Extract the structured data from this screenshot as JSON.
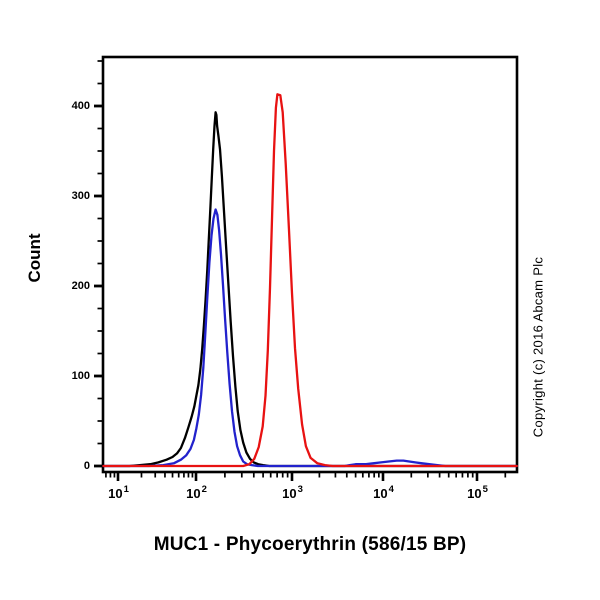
{
  "window": {
    "background": "#ffffff"
  },
  "copyright": "Copyright (c) 2016 Abcam Plc",
  "chart_data": {
    "type": "line",
    "chart_kind": "flow-cytometry-histogram-overlay",
    "title": "",
    "xlabel": "MUC1 - Phycoerythrin (586/15 BP)",
    "ylabel": "Count",
    "x_scale": "log",
    "xlim": [
      6.5,
      265000
    ],
    "ylim": [
      0,
      454
    ],
    "grid": false,
    "legend": "none",
    "frame_color": "#000000",
    "x_ticks": [
      {
        "base": "10",
        "exp": "1",
        "value": 10
      },
      {
        "base": "10",
        "exp": "2",
        "value": 100
      },
      {
        "base": "10",
        "exp": "3",
        "value": 1000
      },
      {
        "base": "10",
        "exp": "4",
        "value": 10000
      },
      {
        "base": "10",
        "exp": "5",
        "value": 100000
      }
    ],
    "y_ticks": [
      {
        "label": "0",
        "value": 0
      },
      {
        "label": "100",
        "value": 100
      },
      {
        "label": "200",
        "value": 200
      },
      {
        "label": "300",
        "value": 300
      },
      {
        "label": "400",
        "value": 400
      }
    ],
    "y_minor_tick_step": 25,
    "series": [
      {
        "name": "black",
        "color": "#000000",
        "peak": {
          "x": 160,
          "count": 393
        },
        "points": [
          [
            6.5,
            0
          ],
          [
            14,
            0
          ],
          [
            19,
            1
          ],
          [
            26,
            2
          ],
          [
            33,
            4
          ],
          [
            42,
            7
          ],
          [
            50,
            10
          ],
          [
            57,
            14
          ],
          [
            64,
            20
          ],
          [
            72,
            31
          ],
          [
            80,
            43
          ],
          [
            88,
            55
          ],
          [
            95,
            66
          ],
          [
            100,
            76
          ],
          [
            106,
            90
          ],
          [
            111,
            108
          ],
          [
            116,
            130
          ],
          [
            121,
            156
          ],
          [
            126,
            185
          ],
          [
            131,
            218
          ],
          [
            136,
            252
          ],
          [
            141,
            285
          ],
          [
            146,
            320
          ],
          [
            151,
            352
          ],
          [
            156,
            378
          ],
          [
            160,
            393
          ],
          [
            163,
            390
          ],
          [
            166,
            378
          ],
          [
            171,
            367
          ],
          [
            178,
            352
          ],
          [
            186,
            322
          ],
          [
            196,
            281
          ],
          [
            207,
            240
          ],
          [
            218,
            200
          ],
          [
            230,
            160
          ],
          [
            243,
            122
          ],
          [
            257,
            88
          ],
          [
            272,
            61
          ],
          [
            290,
            40
          ],
          [
            310,
            26
          ],
          [
            335,
            15
          ],
          [
            365,
            8
          ],
          [
            400,
            4
          ],
          [
            445,
            2
          ],
          [
            500,
            1
          ],
          [
            580,
            0
          ],
          [
            1000,
            0
          ],
          [
            5000,
            0
          ],
          [
            50000,
            0
          ],
          [
            265000,
            0
          ]
        ]
      },
      {
        "name": "blue",
        "color": "#2222cc",
        "peak": {
          "x": 160,
          "count": 285
        },
        "points": [
          [
            6.5,
            0
          ],
          [
            25,
            0
          ],
          [
            38,
            1
          ],
          [
            52,
            3
          ],
          [
            64,
            7
          ],
          [
            75,
            12
          ],
          [
            85,
            19
          ],
          [
            94,
            29
          ],
          [
            101,
            42
          ],
          [
            107,
            57
          ],
          [
            113,
            79
          ],
          [
            119,
            109
          ],
          [
            125,
            147
          ],
          [
            131,
            187
          ],
          [
            138,
            226
          ],
          [
            145,
            256
          ],
          [
            152,
            275
          ],
          [
            160,
            285
          ],
          [
            167,
            279
          ],
          [
            174,
            262
          ],
          [
            182,
            235
          ],
          [
            191,
            201
          ],
          [
            201,
            163
          ],
          [
            212,
            126
          ],
          [
            224,
            91
          ],
          [
            237,
            61
          ],
          [
            252,
            38
          ],
          [
            268,
            22
          ],
          [
            287,
            12
          ],
          [
            310,
            5
          ],
          [
            340,
            2
          ],
          [
            380,
            1
          ],
          [
            440,
            0
          ],
          [
            1500,
            0
          ],
          [
            3800,
            0
          ],
          [
            4300,
            1
          ],
          [
            5000,
            2
          ],
          [
            5700,
            2
          ],
          [
            6500,
            2
          ],
          [
            7800,
            3
          ],
          [
            9500,
            4
          ],
          [
            11500,
            5
          ],
          [
            14000,
            6
          ],
          [
            16500,
            6
          ],
          [
            19000,
            5
          ],
          [
            22000,
            4
          ],
          [
            26000,
            3
          ],
          [
            31000,
            2
          ],
          [
            38000,
            1
          ],
          [
            46000,
            0
          ],
          [
            265000,
            0
          ]
        ]
      },
      {
        "name": "red",
        "color": "#e81212",
        "peak": {
          "x": 710,
          "count": 414
        },
        "points": [
          [
            6.5,
            0
          ],
          [
            50,
            0
          ],
          [
            150,
            0
          ],
          [
            250,
            0
          ],
          [
            310,
            0
          ],
          [
            360,
            2
          ],
          [
            405,
            8
          ],
          [
            450,
            21
          ],
          [
            495,
            44
          ],
          [
            530,
            78
          ],
          [
            560,
            128
          ],
          [
            590,
            198
          ],
          [
            620,
            278
          ],
          [
            650,
            350
          ],
          [
            680,
            398
          ],
          [
            705,
            413
          ],
          [
            755,
            412
          ],
          [
            800,
            393
          ],
          [
            860,
            336
          ],
          [
            930,
            262
          ],
          [
            1000,
            192
          ],
          [
            1080,
            131
          ],
          [
            1170,
            86
          ],
          [
            1290,
            46
          ],
          [
            1420,
            22
          ],
          [
            1600,
            9
          ],
          [
            1900,
            3
          ],
          [
            2300,
            1
          ],
          [
            2800,
            0
          ],
          [
            10000,
            0
          ],
          [
            100000,
            0
          ],
          [
            265000,
            0
          ]
        ]
      }
    ]
  }
}
